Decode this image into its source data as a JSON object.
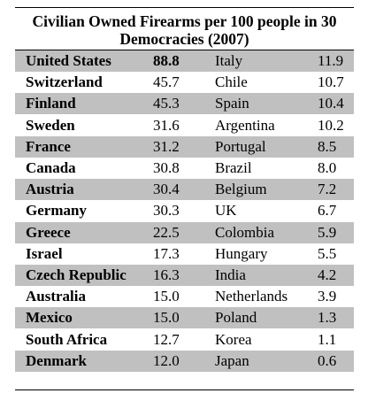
{
  "table": {
    "title": "Civilian Owned Firearms per 100 people in 30 Democracies (2007)",
    "rows": [
      {
        "country_left": "United States",
        "value_left": "88.8",
        "country_right": "Italy",
        "value_right": "11.9"
      },
      {
        "country_left": "Switzerland",
        "value_left": "45.7",
        "country_right": "Chile",
        "value_right": "10.7"
      },
      {
        "country_left": "Finland",
        "value_left": "45.3",
        "country_right": "Spain",
        "value_right": "10.4"
      },
      {
        "country_left": "Sweden",
        "value_left": "31.6",
        "country_right": "Argentina",
        "value_right": "10.2"
      },
      {
        "country_left": "France",
        "value_left": "31.2",
        "country_right": "Portugal",
        "value_right": "8.5"
      },
      {
        "country_left": "Canada",
        "value_left": "30.8",
        "country_right": "Brazil",
        "value_right": "8.0"
      },
      {
        "country_left": "Austria",
        "value_left": "30.4",
        "country_right": "Belgium",
        "value_right": "7.2"
      },
      {
        "country_left": "Germany",
        "value_left": "30.3",
        "country_right": "UK",
        "value_right": "6.7"
      },
      {
        "country_left": "Greece",
        "value_left": "22.5",
        "country_right": "Colombia",
        "value_right": "5.9"
      },
      {
        "country_left": "Israel",
        "value_left": "17.3",
        "country_right": "Hungary",
        "value_right": "5.5"
      },
      {
        "country_left": "Czech Republic",
        "value_left": "16.3",
        "country_right": "India",
        "value_right": "4.2"
      },
      {
        "country_left": "Australia",
        "value_left": "15.0",
        "country_right": "Netherlands",
        "value_right": "3.9"
      },
      {
        "country_left": "Mexico",
        "value_left": "15.0",
        "country_right": "Poland",
        "value_right": "1.3"
      },
      {
        "country_left": "South Africa",
        "value_left": "12.7",
        "country_right": "Korea",
        "value_right": "1.1"
      },
      {
        "country_left": "Denmark",
        "value_left": "12.0",
        "country_right": "Japan",
        "value_right": "0.6"
      }
    ]
  },
  "colors": {
    "shade": "#c0c0c0"
  }
}
